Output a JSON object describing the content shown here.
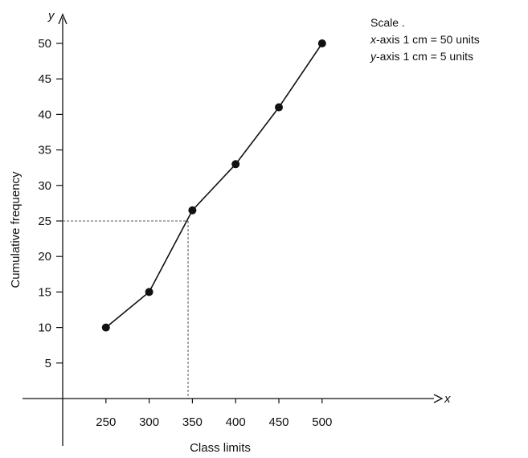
{
  "scale": {
    "heading": "Scale .",
    "x_prefix": "x",
    "x_rest": "-axis 1 cm = 50 units",
    "y_prefix": "y",
    "y_rest": "-axis 1 cm = 5 units"
  },
  "chart_data": {
    "type": "line",
    "x": [
      250,
      300,
      350,
      400,
      450,
      500
    ],
    "y": [
      10,
      15,
      26.5,
      33,
      41,
      50
    ],
    "xlabel": "Class limits",
    "ylabel": "Cumulative frequency",
    "x_axis_letter": "x",
    "y_axis_letter": "y",
    "x_ticks": [
      "250",
      "300",
      "350",
      "400",
      "450",
      "500"
    ],
    "y_ticks": [
      "5",
      "10",
      "15",
      "20",
      "25",
      "30",
      "35",
      "40",
      "45",
      "50"
    ],
    "xlim": [
      200,
      550
    ],
    "ylim": [
      0,
      50
    ],
    "grid": false,
    "marker": "filled-circle",
    "median_guide": {
      "y": 25,
      "x": 345
    },
    "colors": {
      "line": "#111111",
      "guide": "#555555"
    }
  }
}
